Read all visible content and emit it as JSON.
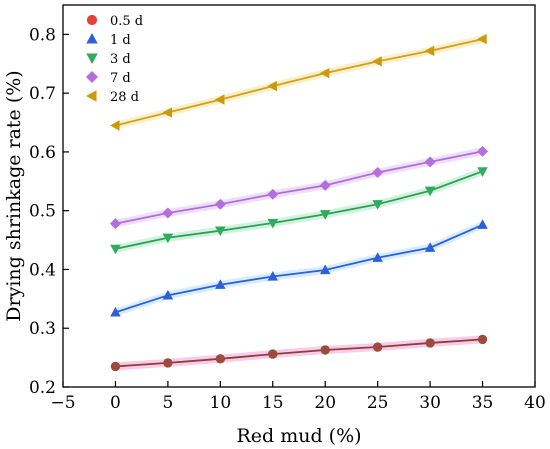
{
  "chart_data": {
    "type": "line",
    "xlabel": "Red mud (%)",
    "ylabel": "Drying shrinkage rate (%)",
    "xlim": [
      -5,
      40
    ],
    "ylim": [
      0.2,
      0.85
    ],
    "xticks": [
      -5,
      0,
      5,
      10,
      15,
      20,
      25,
      30,
      35,
      40
    ],
    "yticks": [
      0.2,
      0.3,
      0.4,
      0.5,
      0.6,
      0.7,
      0.8
    ],
    "x": [
      0,
      5,
      10,
      15,
      20,
      25,
      30,
      35
    ],
    "legend_position": "top-left",
    "grid": false,
    "series": [
      {
        "name": "0.5 d",
        "marker": "circle",
        "marker_color": "#e8413a",
        "point_color": "#9c4a3c",
        "line_color": "#8b4030",
        "band_color": "#f7c2ea",
        "values": [
          0.235,
          0.241,
          0.248,
          0.256,
          0.263,
          0.268,
          0.275,
          0.281
        ]
      },
      {
        "name": "1 d",
        "marker": "triangle-up",
        "marker_color": "#2f5fd6",
        "point_color": "#2f5fd6",
        "line_color": "#2f5fd6",
        "band_color": "#cfe9ff",
        "values": [
          0.327,
          0.356,
          0.374,
          0.388,
          0.399,
          0.42,
          0.437,
          0.476
        ]
      },
      {
        "name": "3 d",
        "marker": "triangle-down",
        "marker_color": "#2faa5e",
        "point_color": "#2faa5e",
        "line_color": "#2f9f57",
        "band_color": "#c8f0d8",
        "values": [
          0.435,
          0.454,
          0.466,
          0.479,
          0.494,
          0.511,
          0.534,
          0.567
        ]
      },
      {
        "name": "7 d",
        "marker": "diamond",
        "marker_color": "#b36ee0",
        "point_color": "#b36ee0",
        "line_color": "#b06fd8",
        "band_color": "#ead9f7",
        "values": [
          0.478,
          0.496,
          0.511,
          0.528,
          0.543,
          0.565,
          0.583,
          0.601
        ]
      },
      {
        "name": "28 d",
        "marker": "triangle-left",
        "marker_color": "#c99a0a",
        "point_color": "#c99a0a",
        "line_color": "#d4a017",
        "band_color": "#f7ecc4",
        "values": [
          0.645,
          0.667,
          0.689,
          0.712,
          0.734,
          0.754,
          0.772,
          0.792
        ]
      }
    ]
  }
}
